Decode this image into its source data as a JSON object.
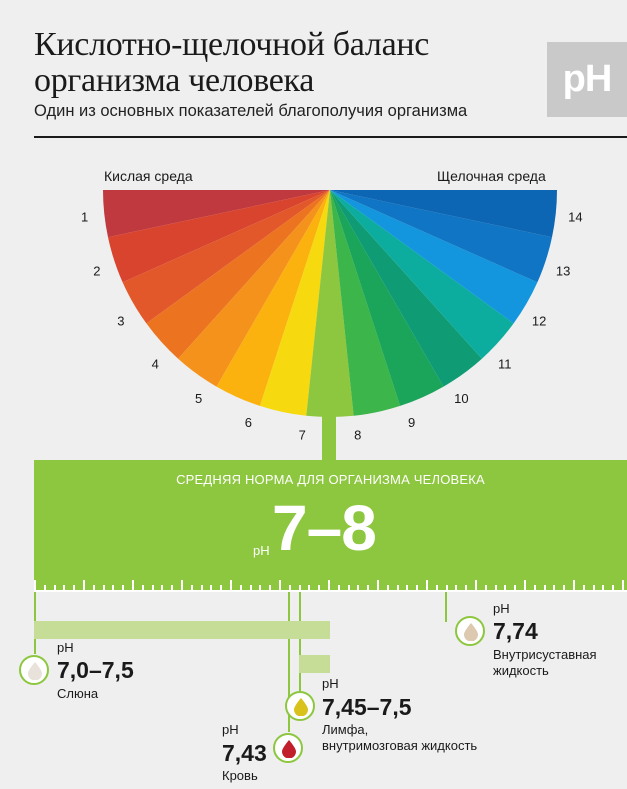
{
  "header": {
    "title_line1": "Кислотно-щелочной баланс",
    "title_line2": "организма человека",
    "subtitle": "Один из основных показателей благополучия организма",
    "logo_text": "pH"
  },
  "scale": {
    "left_label": "Кислая среда",
    "right_label": "Щелочная среда",
    "values": [
      "1",
      "2",
      "3",
      "4",
      "5",
      "6",
      "7",
      "8",
      "9",
      "10",
      "11",
      "12",
      "13",
      "14"
    ],
    "colors": [
      "#c0393f",
      "#d9442e",
      "#e2582b",
      "#ec7421",
      "#f5921b",
      "#fbb20f",
      "#f6d90f",
      "#8dc63f",
      "#3cb54a",
      "#1aa55a",
      "#0f9c74",
      "#0cad9f",
      "#1396dd",
      "#0f75c4",
      "#0d66b3"
    ]
  },
  "norm": {
    "label": "СРЕДНЯЯ НОРМА ДЛЯ ОРГАНИЗМА ЧЕЛОВЕКА",
    "ph_label": "pH",
    "value": "7–8"
  },
  "items": [
    {
      "ph_label": "pH",
      "value": "7,0–7,5",
      "name": "Слюна",
      "drop_color": "#e8e2da"
    },
    {
      "ph_label": "pH",
      "value": "7,45–7,5",
      "name_line1": "Лимфа,",
      "name_line2": "внутримозговая жидкость",
      "drop_color": "#d9c21b"
    },
    {
      "ph_label": "pH",
      "value": "7,43",
      "name": "Кровь",
      "drop_color": "#c01f2b"
    },
    {
      "ph_label": "pH",
      "value": "7,74",
      "name_line1": "Внутрисуставная",
      "name_line2": "жидкость",
      "drop_color": "#dcc9b0"
    }
  ]
}
